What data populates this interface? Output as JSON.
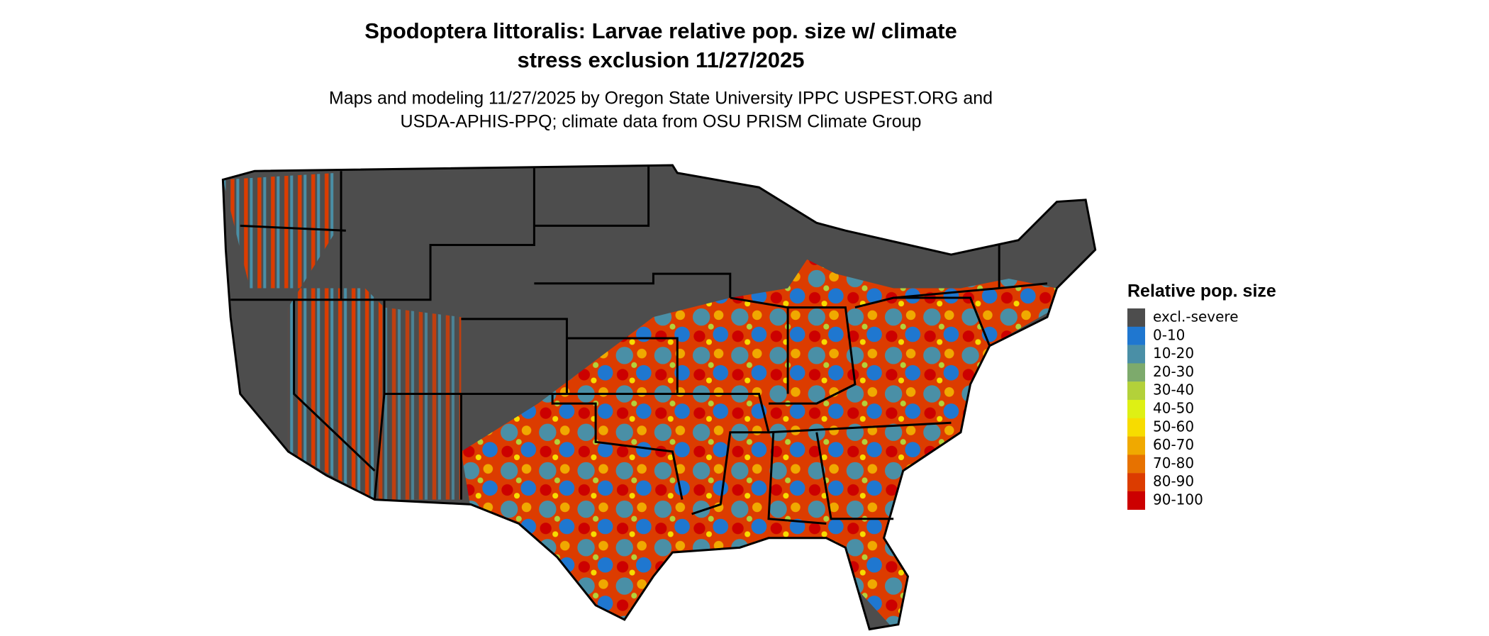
{
  "header": {
    "title": [
      "Spodoptera littoralis: Larvae relative pop. size w/ climate",
      "stress exclusion 11/27/2025"
    ],
    "subtitle": [
      "Maps and modeling 11/27/2025 by Oregon State University IPPC USPEST.ORG and",
      "USDA-APHIS-PPQ; climate data from OSU PRISM Climate Group"
    ]
  },
  "legend": {
    "title": "Relative pop. size",
    "items": [
      {
        "label": "excl.-severe",
        "color": "#4d4d4d"
      },
      {
        "label": "0-10",
        "color": "#1f77d0"
      },
      {
        "label": "10-20",
        "color": "#4a8fa6"
      },
      {
        "label": "20-30",
        "color": "#7daa6c"
      },
      {
        "label": "30-40",
        "color": "#b3d13a"
      },
      {
        "label": "40-50",
        "color": "#def014"
      },
      {
        "label": "50-60",
        "color": "#f7dc00"
      },
      {
        "label": "60-70",
        "color": "#f0a900"
      },
      {
        "label": "70-80",
        "color": "#e77200"
      },
      {
        "label": "80-90",
        "color": "#dc3c00"
      },
      {
        "label": "90-100",
        "color": "#cc0000"
      }
    ]
  }
}
